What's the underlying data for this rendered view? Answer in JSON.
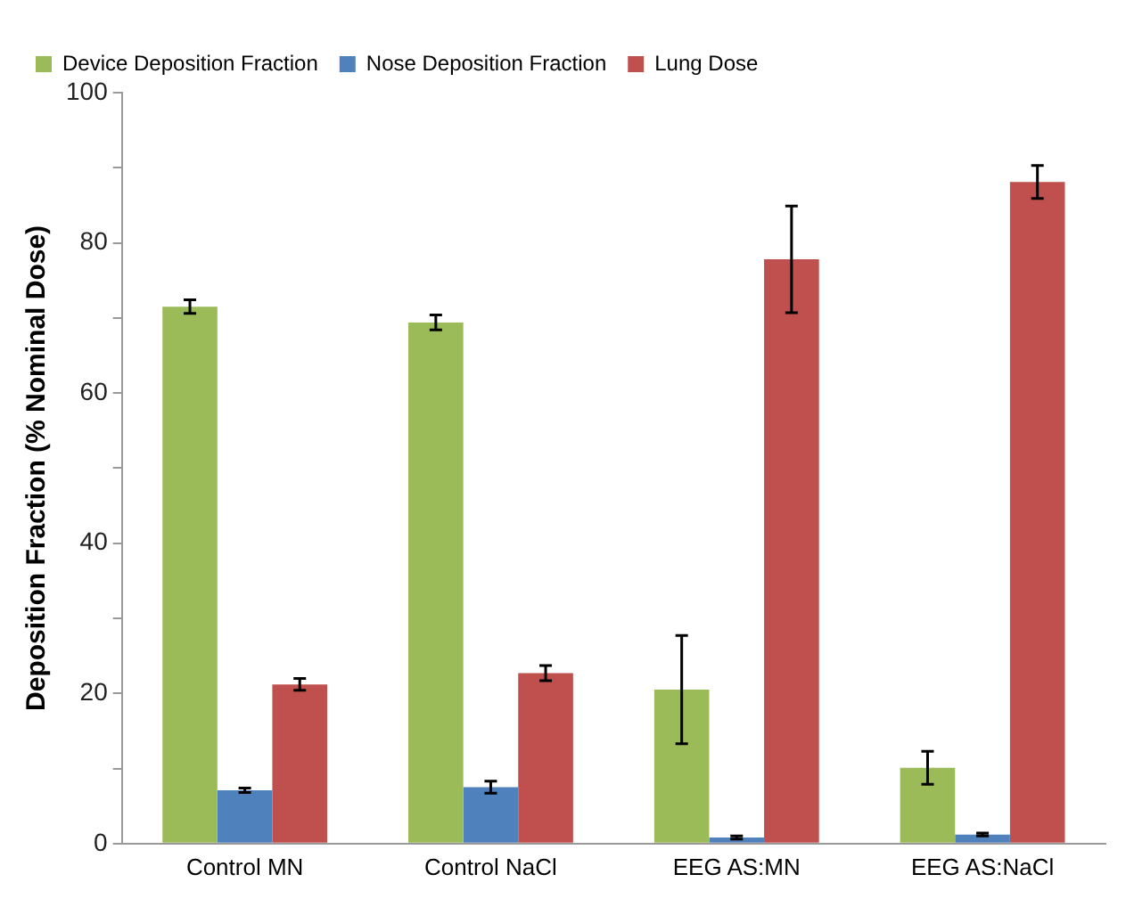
{
  "chart_data": {
    "type": "bar",
    "ylabel": "Deposition Fraction (% Nominal Dose)",
    "categories": [
      "Control MN",
      "Control NaCl",
      "EEG AS:MN",
      "EEG AS:NaCl"
    ],
    "series": [
      {
        "name": "Device Deposition Fraction",
        "color": "#9bbb59",
        "values": [
          71.5,
          69.4,
          20.5,
          10.1
        ],
        "errors": [
          0.9,
          1.0,
          7.2,
          2.2
        ]
      },
      {
        "name": "Nose Deposition Fraction",
        "color": "#4f81bd",
        "values": [
          7.1,
          7.5,
          0.8,
          1.2
        ],
        "errors": [
          0.3,
          0.8,
          0.2,
          0.2
        ]
      },
      {
        "name": "Lung Dose",
        "color": "#c0504d",
        "values": [
          21.2,
          22.7,
          77.8,
          88.1
        ],
        "errors": [
          0.8,
          1.0,
          7.1,
          2.2
        ]
      }
    ],
    "ylim": [
      0,
      100
    ],
    "yticks": [
      0,
      {
        "value": 10,
        "label": null
      },
      20,
      {
        "value": 30,
        "label": null
      },
      40,
      {
        "value": 50,
        "label": null
      },
      60,
      {
        "value": 70,
        "label": null
      },
      80,
      {
        "value": 90,
        "label": null
      },
      100
    ],
    "grid": false,
    "legend": "top left"
  }
}
